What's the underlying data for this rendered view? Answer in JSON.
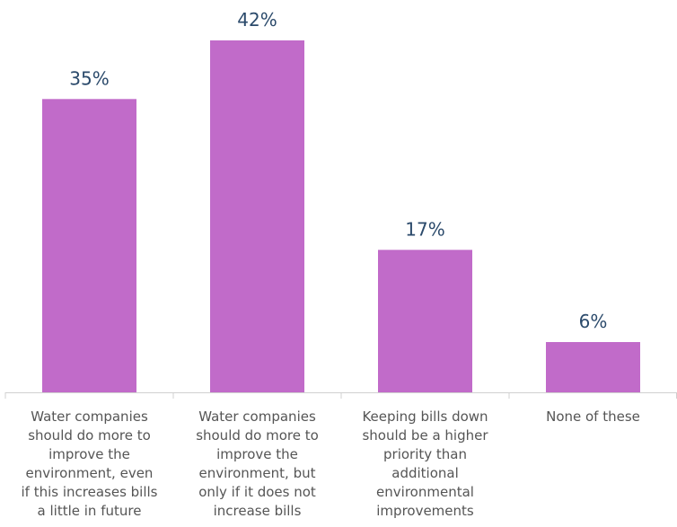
{
  "chart_data": {
    "type": "bar",
    "categories": [
      [
        "Water companies",
        "should do more to",
        "improve the",
        "environment, even",
        "if this increases bills",
        "a little in future"
      ],
      [
        "Water companies",
        "should do more to",
        "improve the",
        "environment, but",
        "only if it does not",
        "increase bills"
      ],
      [
        "Keeping bills down",
        "should be a higher",
        "priority than",
        "additional",
        "environmental",
        "improvements"
      ],
      [
        "None of these"
      ]
    ],
    "values": [
      35,
      42,
      17,
      6
    ],
    "value_labels": [
      "35%",
      "42%",
      "17%",
      "6%"
    ],
    "ylim": [
      0,
      42
    ],
    "bar_color": "#c16bc9",
    "axis_color": "#d0d0d0",
    "value_label_color": "#2b4a6b",
    "category_label_color": "#555555",
    "grid": false,
    "legend": "none"
  }
}
